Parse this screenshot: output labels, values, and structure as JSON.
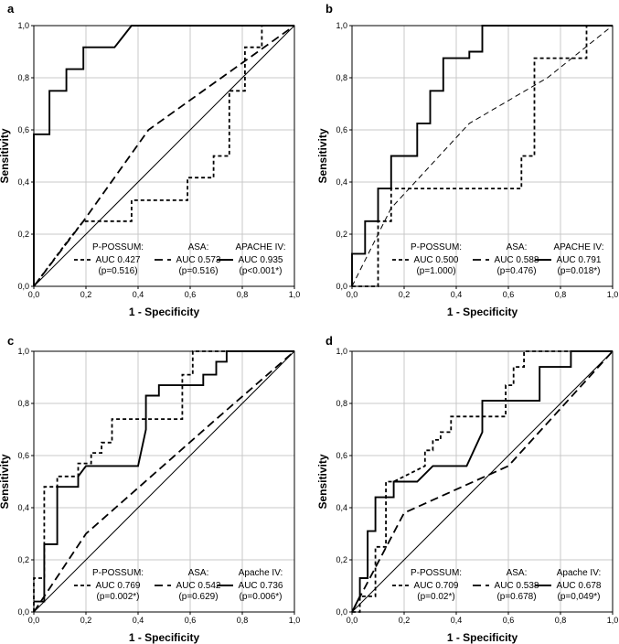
{
  "chart_data": [
    {
      "type": "line",
      "panel_label": "a",
      "xlabel": "1 - Specificity",
      "ylabel": "Sensitivity",
      "xlim": [
        0,
        1
      ],
      "ylim": [
        0,
        1
      ],
      "ticks": [
        "0,0",
        "0,2",
        "0,4",
        "0,6",
        "0,8",
        "1,0"
      ],
      "grid": true,
      "legend": [
        {
          "name": "P-POSSUM:",
          "auc": "AUC 0.427",
          "p": "(p=0.516)",
          "style": "short-dash"
        },
        {
          "name": "ASA:",
          "auc": "AUC 0.573",
          "p": "(p=0.516)",
          "style": "long-dash"
        },
        {
          "name": "APACHE IV:",
          "auc": "AUC 0.935",
          "p": "(p<0.001*)",
          "style": "solid"
        }
      ],
      "series": [
        {
          "style": "short-dash",
          "x": [
            0,
            0.125,
            0.125,
            0.19,
            0.19,
            0.375,
            0.375,
            0.59,
            0.59,
            0.69,
            0.69,
            0.75,
            0.75,
            0.81,
            0.81,
            0.875,
            0.875,
            1.0
          ],
          "y": [
            0,
            0.167,
            0.167,
            0.25,
            0.25,
            0.25,
            0.33,
            0.33,
            0.417,
            0.417,
            0.5,
            0.5,
            0.75,
            0.75,
            0.917,
            0.917,
            1.0,
            1.0
          ]
        },
        {
          "style": "long-dash",
          "x": [
            0,
            0.19,
            0.44,
            1.0
          ],
          "y": [
            0,
            0.25,
            0.6,
            1.0
          ]
        },
        {
          "style": "solid",
          "x": [
            0,
            0,
            0.06,
            0.06,
            0.125,
            0.125,
            0.19,
            0.19,
            0.31,
            0.375,
            0.375,
            1.0
          ],
          "y": [
            0,
            0.583,
            0.583,
            0.75,
            0.75,
            0.833,
            0.833,
            0.917,
            0.917,
            1.0,
            1.0,
            1.0
          ]
        },
        {
          "style": "diagonal",
          "x": [
            0,
            1
          ],
          "y": [
            0,
            1
          ]
        }
      ]
    },
    {
      "type": "line",
      "panel_label": "b",
      "xlabel": "1 - Specificity",
      "ylabel": "Sensitivity",
      "xlim": [
        0,
        1
      ],
      "ylim": [
        0,
        1
      ],
      "ticks": [
        "0,0",
        "0,2",
        "0,4",
        "0,6",
        "0,8",
        "1,0"
      ],
      "grid": true,
      "legend": [
        {
          "name": "P-POSSUM:",
          "auc": "AUC 0.500",
          "p": "(p=1.000)",
          "style": "short-dash"
        },
        {
          "name": "ASA:",
          "auc": "AUC 0.588",
          "p": "(p=0.476)",
          "style": "long-dash"
        },
        {
          "name": "APACHE IV:",
          "auc": "AUC 0.791",
          "p": "(p=0.018*)",
          "style": "solid"
        }
      ],
      "series": [
        {
          "style": "short-dash",
          "x": [
            0,
            0.1,
            0.1,
            0.15,
            0.15,
            0.65,
            0.65,
            0.7,
            0.7,
            0.9,
            0.9,
            1.0
          ],
          "y": [
            0,
            0,
            0.25,
            0.25,
            0.375,
            0.375,
            0.5,
            0.5,
            0.875,
            0.875,
            1.0,
            1.0
          ]
        },
        {
          "style": "thin-dash",
          "x": [
            0,
            0.15,
            0.45,
            0.75,
            1.0
          ],
          "y": [
            0,
            0.3,
            0.625,
            0.8,
            1.0
          ]
        },
        {
          "style": "solid",
          "x": [
            0,
            0,
            0.05,
            0.05,
            0.1,
            0.1,
            0.15,
            0.15,
            0.25,
            0.25,
            0.3,
            0.3,
            0.35,
            0.35,
            0.45,
            0.45,
            0.5,
            0.5,
            1.0
          ],
          "y": [
            0,
            0.125,
            0.125,
            0.25,
            0.25,
            0.375,
            0.375,
            0.5,
            0.5,
            0.625,
            0.625,
            0.75,
            0.75,
            0.875,
            0.875,
            0.9,
            0.9,
            1.0,
            1.0
          ]
        }
      ]
    },
    {
      "type": "line",
      "panel_label": "c",
      "xlabel": "1 - Specificity",
      "ylabel": "Sensitivity",
      "xlim": [
        0,
        1
      ],
      "ylim": [
        0,
        1
      ],
      "ticks": [
        "0,0",
        "0,2",
        "0,4",
        "0,6",
        "0,8",
        "1,0"
      ],
      "grid": true,
      "legend": [
        {
          "name": "P-POSSUM:",
          "auc": "AUC 0.769",
          "p": "(p=0.002*)",
          "style": "short-dash"
        },
        {
          "name": "ASA:",
          "auc": "AUC 0.542",
          "p": "(p=0.629)",
          "style": "long-dash"
        },
        {
          "name": "Apache IV:",
          "auc": "AUC 0.736",
          "p": "(p=0.006*)",
          "style": "solid"
        }
      ],
      "series": [
        {
          "style": "short-dash",
          "x": [
            0,
            0,
            0.04,
            0.04,
            0.09,
            0.09,
            0.17,
            0.17,
            0.22,
            0.22,
            0.26,
            0.26,
            0.3,
            0.3,
            0.57,
            0.57,
            0.61,
            0.61,
            1.0
          ],
          "y": [
            0,
            0.13,
            0.13,
            0.48,
            0.48,
            0.52,
            0.52,
            0.57,
            0.57,
            0.61,
            0.61,
            0.65,
            0.65,
            0.74,
            0.74,
            0.91,
            0.91,
            1.0,
            1.0
          ]
        },
        {
          "style": "long-dash",
          "x": [
            0,
            0.2,
            0.45,
            0.7,
            1.0
          ],
          "y": [
            0,
            0.3,
            0.52,
            0.74,
            1.0
          ]
        },
        {
          "style": "solid",
          "x": [
            0,
            0.04,
            0.04,
            0.09,
            0.09,
            0.17,
            0.17,
            0.2,
            0.3,
            0.4,
            0.43,
            0.43,
            0.48,
            0.48,
            0.57,
            0.57,
            0.65,
            0.65,
            0.7,
            0.7,
            0.74,
            0.74,
            1.0
          ],
          "y": [
            0.04,
            0.04,
            0.26,
            0.26,
            0.48,
            0.48,
            0.52,
            0.56,
            0.56,
            0.56,
            0.7,
            0.83,
            0.83,
            0.87,
            0.87,
            0.87,
            0.87,
            0.91,
            0.91,
            0.96,
            0.96,
            1.0,
            1.0
          ]
        },
        {
          "style": "diagonal",
          "x": [
            0,
            1
          ],
          "y": [
            0,
            1
          ]
        }
      ]
    },
    {
      "type": "line",
      "panel_label": "d",
      "xlabel": "1 - Specificity",
      "ylabel": "Sensitivity",
      "xlim": [
        0,
        1
      ],
      "ylim": [
        0,
        1
      ],
      "ticks": [
        "0,0",
        "0,2",
        "0,4",
        "0,6",
        "0,8",
        "1,0"
      ],
      "grid": true,
      "legend": [
        {
          "name": "P-POSSUM:",
          "auc": "AUC 0.709",
          "p": "(p=0.02*)",
          "style": "short-dash"
        },
        {
          "name": "ASA:",
          "auc": "AUC 0.538",
          "p": "(p=0.678)",
          "style": "long-dash"
        },
        {
          "name": "Apache IV:",
          "auc": "AUC 0.678",
          "p": "(p=0,049*)",
          "style": "solid"
        }
      ],
      "series": [
        {
          "style": "short-dash",
          "x": [
            0,
            0.03,
            0.03,
            0.09,
            0.09,
            0.13,
            0.13,
            0.16,
            0.28,
            0.28,
            0.31,
            0.31,
            0.34,
            0.34,
            0.38,
            0.38,
            0.59,
            0.59,
            0.62,
            0.62,
            0.66,
            0.66,
            1.0
          ],
          "y": [
            0,
            0,
            0.06,
            0.06,
            0.25,
            0.25,
            0.5,
            0.5,
            0.56,
            0.62,
            0.62,
            0.66,
            0.66,
            0.69,
            0.69,
            0.75,
            0.75,
            0.87,
            0.87,
            0.94,
            0.94,
            1.0,
            1.0
          ]
        },
        {
          "style": "long-dash",
          "x": [
            0,
            0.2,
            0.6,
            1.0
          ],
          "y": [
            0,
            0.38,
            0.56,
            1.0
          ]
        },
        {
          "style": "solid",
          "x": [
            0,
            0.03,
            0.03,
            0.06,
            0.06,
            0.09,
            0.09,
            0.16,
            0.16,
            0.25,
            0.31,
            0.44,
            0.5,
            0.5,
            0.72,
            0.72,
            0.78,
            0.78,
            0.84,
            0.84,
            1.0
          ],
          "y": [
            0,
            0.06,
            0.13,
            0.13,
            0.31,
            0.31,
            0.44,
            0.44,
            0.5,
            0.5,
            0.56,
            0.56,
            0.69,
            0.81,
            0.81,
            0.94,
            0.94,
            0.94,
            0.94,
            1.0,
            1.0
          ]
        },
        {
          "style": "diagonal",
          "x": [
            0,
            1
          ],
          "y": [
            0,
            1
          ]
        }
      ]
    }
  ]
}
